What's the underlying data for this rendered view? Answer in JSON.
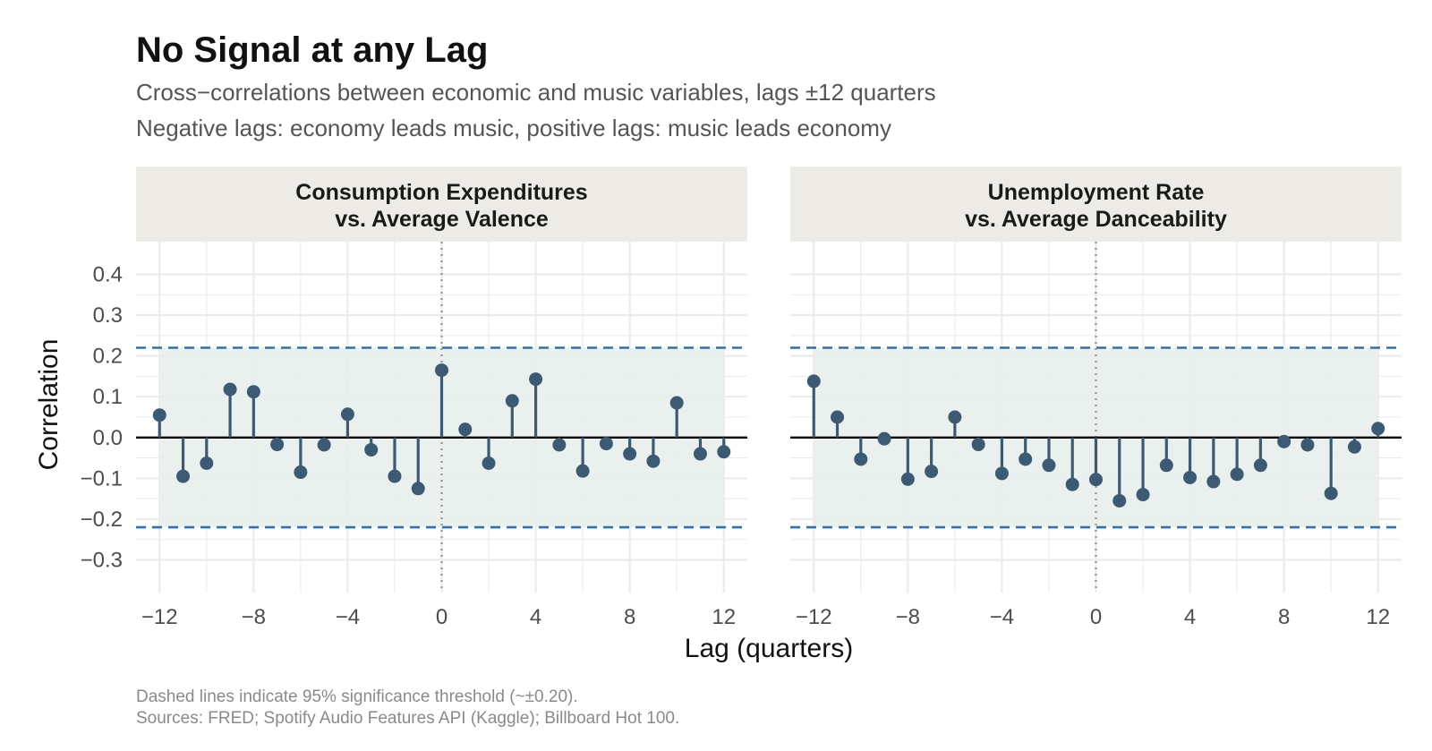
{
  "title": "No Signal at any Lag",
  "subtitle_line1": "Cross−correlations between economic and music variables, lags ±12 quarters",
  "subtitle_line2": "Negative lags: economy leads music, positive lags: music leads economy",
  "caption_line1": "Dashed lines indicate 95% significance threshold (~±0.20).",
  "caption_line2": "Sources: FRED; Spotify Audio Features API (Kaggle); Billboard Hot 100.",
  "colors": {
    "stem": "#3d5a75",
    "threshold": "#3370a8",
    "band": "#e8eeec",
    "strip": "#ecebe5",
    "grid": "#ebebeb",
    "zero": "#000000",
    "vline": "#999999"
  },
  "chart_data": {
    "type": "lollipop",
    "xlabel": "Lag (quarters)",
    "ylabel": "Correlation",
    "xlim": [
      -13,
      13
    ],
    "ylim": [
      -0.38,
      0.48
    ],
    "x_ticks": [
      -12,
      -8,
      -4,
      0,
      4,
      8,
      12
    ],
    "x_tick_labels": [
      "−12",
      "−8",
      "−4",
      "0",
      "4",
      "8",
      "12"
    ],
    "y_ticks": [
      -0.3,
      -0.2,
      -0.1,
      0.0,
      0.1,
      0.2,
      0.3,
      0.4
    ],
    "y_tick_labels": [
      "−0.3",
      "−0.2",
      "−0.1",
      "0.0",
      "0.1",
      "0.2",
      "0.3",
      "0.4"
    ],
    "threshold": 0.22,
    "lags": [
      -12,
      -11,
      -10,
      -9,
      -8,
      -7,
      -6,
      -5,
      -4,
      -3,
      -2,
      -1,
      0,
      1,
      2,
      3,
      4,
      5,
      6,
      7,
      8,
      9,
      10,
      11,
      12
    ],
    "panels": [
      {
        "title_line1": "Consumption Expenditures",
        "title_line2": "vs. Average Valence",
        "values": [
          0.055,
          -0.095,
          -0.063,
          0.118,
          0.112,
          -0.017,
          -0.085,
          -0.018,
          0.057,
          -0.03,
          -0.095,
          -0.125,
          0.165,
          0.02,
          -0.063,
          0.09,
          0.143,
          -0.018,
          -0.082,
          -0.015,
          -0.04,
          -0.058,
          0.085,
          -0.04,
          -0.035
        ]
      },
      {
        "title_line1": "Unemployment Rate",
        "title_line2": "vs. Average Danceability",
        "values": [
          0.138,
          0.05,
          -0.053,
          -0.003,
          -0.102,
          -0.083,
          0.05,
          -0.017,
          -0.088,
          -0.053,
          -0.068,
          -0.115,
          -0.103,
          -0.155,
          -0.14,
          -0.068,
          -0.098,
          -0.108,
          -0.09,
          -0.068,
          -0.01,
          -0.018,
          -0.137,
          -0.023,
          0.022
        ]
      }
    ]
  }
}
